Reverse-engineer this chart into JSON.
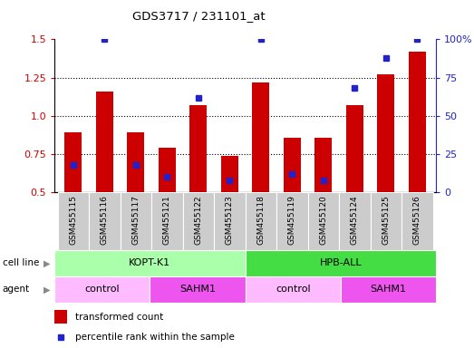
{
  "title": "GDS3717 / 231101_at",
  "samples": [
    "GSM455115",
    "GSM455116",
    "GSM455117",
    "GSM455121",
    "GSM455122",
    "GSM455123",
    "GSM455118",
    "GSM455119",
    "GSM455120",
    "GSM455124",
    "GSM455125",
    "GSM455126"
  ],
  "transformed_counts": [
    0.89,
    1.16,
    0.89,
    0.79,
    1.07,
    0.74,
    1.22,
    0.86,
    0.86,
    1.07,
    1.27,
    1.42
  ],
  "percentile_ranks": [
    18,
    100,
    18,
    10,
    62,
    8,
    100,
    12,
    8,
    68,
    88,
    100
  ],
  "ylim_left": [
    0.5,
    1.5
  ],
  "ylim_right": [
    0,
    100
  ],
  "yticks_left": [
    0.5,
    0.75,
    1.0,
    1.25,
    1.5
  ],
  "yticks_right": [
    0,
    25,
    50,
    75,
    100
  ],
  "bar_color": "#cc0000",
  "dot_color": "#2222cc",
  "bar_bottom": 0.5,
  "cell_line_groups": [
    {
      "label": "KOPT-K1",
      "start": 0,
      "end": 6,
      "color": "#aaffaa"
    },
    {
      "label": "HPB-ALL",
      "start": 6,
      "end": 12,
      "color": "#44dd44"
    }
  ],
  "agent_groups": [
    {
      "label": "control",
      "start": 0,
      "end": 3,
      "color": "#ffbbff"
    },
    {
      "label": "SAHM1",
      "start": 3,
      "end": 6,
      "color": "#ee55ee"
    },
    {
      "label": "control",
      "start": 6,
      "end": 9,
      "color": "#ffbbff"
    },
    {
      "label": "SAHM1",
      "start": 9,
      "end": 12,
      "color": "#ee55ee"
    }
  ],
  "legend_items": [
    {
      "label": "transformed count",
      "color": "#cc0000"
    },
    {
      "label": "percentile rank within the sample",
      "color": "#2222cc"
    }
  ],
  "sample_bg": "#cccccc",
  "plot_bg": "#ffffff",
  "grid_linestyle": ":",
  "grid_color": "#000000",
  "grid_linewidth": 0.8
}
